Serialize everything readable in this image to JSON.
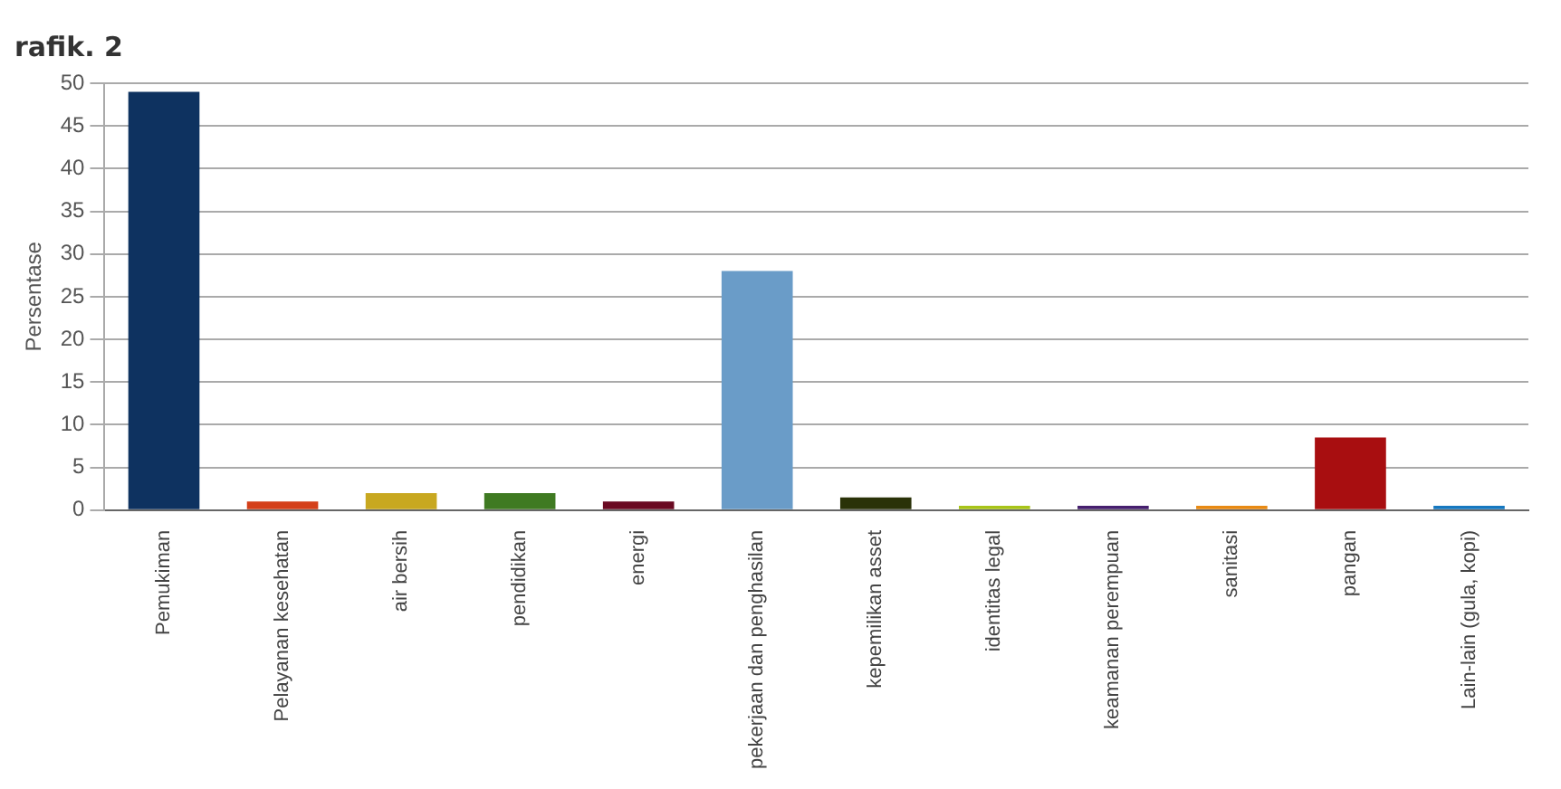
{
  "chart_data": {
    "type": "bar",
    "title": "rafik. 2",
    "ylabel": "Persentase",
    "categories": [
      "Pemukiman",
      "Pelayanan kesehatan",
      "air bersih",
      "pendidikan",
      "energi",
      "pekerjaan dan penghasilan",
      "kepemilikan asset",
      "identitas legal",
      "keamanan perempuan",
      "sanitasi",
      "pangan",
      "Lain-lain (gula, kopi)"
    ],
    "values": [
      49,
      1,
      2,
      2,
      1,
      28,
      1.5,
      0.5,
      0.5,
      0.5,
      8.5,
      0.5
    ],
    "colors": [
      "#0e3260",
      "#d4401a",
      "#c8a820",
      "#3f7a22",
      "#6a0a22",
      "#6a9cc8",
      "#2a3208",
      "#a8c41a",
      "#46206e",
      "#e88a14",
      "#a80e10",
      "#1678c0"
    ],
    "ylim": [
      0,
      50
    ],
    "yticks": [
      0,
      5,
      10,
      15,
      20,
      25,
      30,
      35,
      40,
      45,
      50
    ],
    "grid": "y"
  }
}
